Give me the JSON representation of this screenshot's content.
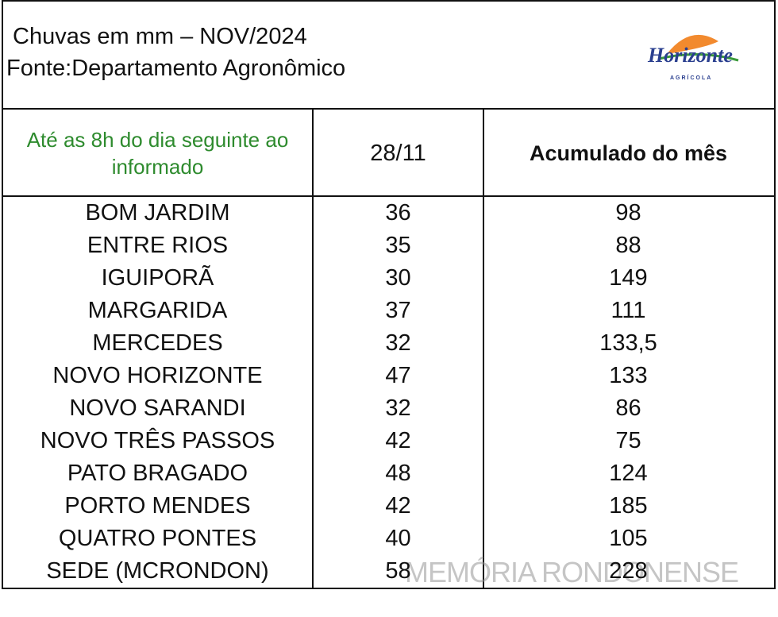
{
  "header": {
    "title": "Chuvas em mm – NOV/2024",
    "source": "Fonte:Departamento Agronômico",
    "logo": "Horizonte",
    "logo_sub": "AGRÍCOLA"
  },
  "table": {
    "columns": [
      "Até as 8h do dia seguinte ao informado",
      "28/11",
      "Acumulado do mês"
    ],
    "rows": [
      [
        "BOM JARDIM",
        36,
        98
      ],
      [
        "ENTRE RIOS",
        35,
        88
      ],
      [
        "IGUIPORÃ",
        30,
        149
      ],
      [
        "MARGARIDA",
        37,
        111
      ],
      [
        "MERCEDES",
        32,
        "133,5"
      ],
      [
        "NOVO HORIZONTE",
        47,
        133
      ],
      [
        "NOVO SARANDI",
        32,
        86
      ],
      [
        "NOVO TRÊS PASSOS",
        42,
        75
      ],
      [
        "PATO BRAGADO",
        48,
        124
      ],
      [
        "PORTO MENDES",
        42,
        185
      ],
      [
        "QUATRO PONTES",
        40,
        105
      ],
      [
        "SEDE (MCRONDON)",
        58,
        228
      ]
    ]
  },
  "watermark": "MEMÓRIA RONDONENSE"
}
